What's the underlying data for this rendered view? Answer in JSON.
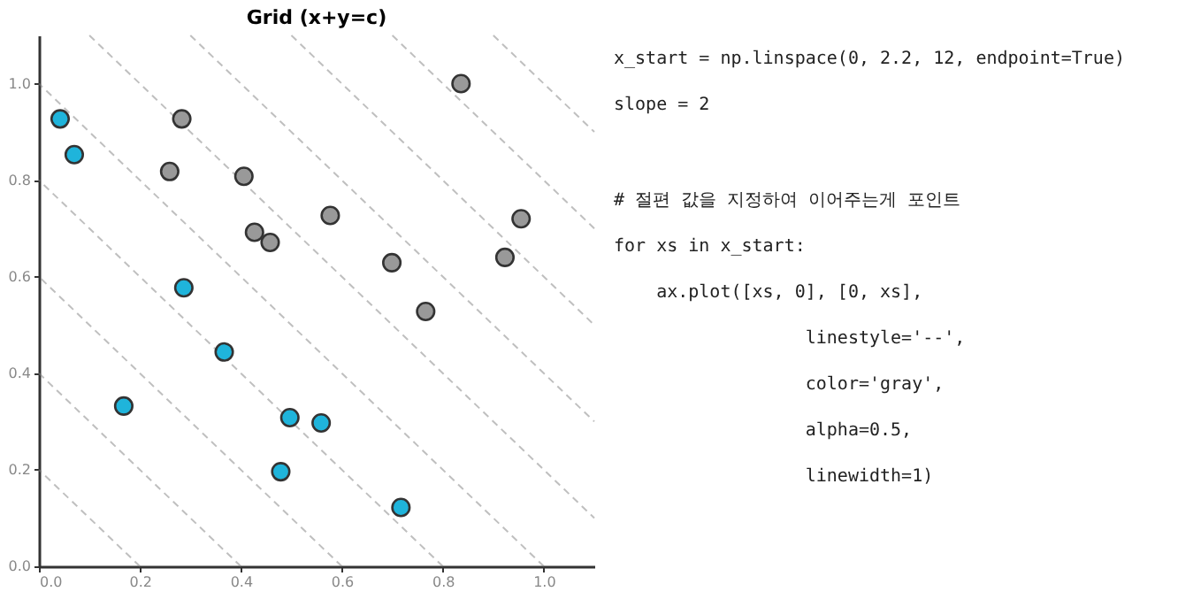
{
  "chart_data": {
    "type": "scatter",
    "title": "Grid (x+y=c)",
    "xlim": [
      0,
      1.1
    ],
    "ylim": [
      0,
      1.1
    ],
    "xticks": [
      {
        "value": 0,
        "label": "0.0"
      },
      0.2,
      0.4,
      0.6,
      0.8,
      {
        "value": 1,
        "label": "1.0"
      }
    ],
    "yticks": [
      {
        "value": 0,
        "label": "0.0"
      },
      0.2,
      0.4,
      0.6,
      0.8,
      {
        "value": 1,
        "label": "1.0"
      }
    ],
    "grid": false,
    "series": [
      {
        "type": "line",
        "color": "#808080",
        "line_style": "dashed",
        "marker": "none",
        "x": [
          0.2,
          0
        ],
        "values": [
          0,
          0.2
        ]
      },
      {
        "type": "line",
        "color": "#808080",
        "line_style": "dashed",
        "marker": "none",
        "x": [
          0.4,
          0
        ],
        "values": [
          0,
          0.4
        ]
      },
      {
        "type": "line",
        "color": "#808080",
        "line_style": "dashed",
        "marker": "none",
        "x": [
          0.6,
          0
        ],
        "values": [
          0,
          0.6
        ]
      },
      {
        "type": "line",
        "color": "#808080",
        "line_style": "dashed",
        "marker": "none",
        "x": [
          0.8,
          0
        ],
        "values": [
          0,
          0.8
        ]
      },
      {
        "type": "line",
        "color": "#808080",
        "line_style": "dashed",
        "marker": "none",
        "x": [
          1.0,
          0
        ],
        "values": [
          0,
          1.0
        ]
      },
      {
        "type": "line",
        "color": "#808080",
        "line_style": "dashed",
        "marker": "none",
        "x": [
          0.1,
          1.1
        ],
        "values": [
          1.1,
          0.1
        ]
      },
      {
        "type": "line",
        "color": "#808080",
        "line_style": "dashed",
        "marker": "none",
        "x": [
          0.3,
          1.1
        ],
        "values": [
          1.1,
          0.3
        ]
      },
      {
        "type": "line",
        "color": "#808080",
        "line_style": "dashed",
        "marker": "none",
        "x": [
          0.5,
          1.1
        ],
        "values": [
          1.1,
          0.5
        ]
      },
      {
        "type": "line",
        "color": "#808080",
        "line_style": "dashed",
        "marker": "none",
        "x": [
          0.7,
          1.1
        ],
        "values": [
          1.1,
          0.7
        ]
      },
      {
        "type": "line",
        "color": "#808080",
        "line_style": "dashed",
        "marker": "none",
        "x": [
          0.9,
          1.1
        ],
        "values": [
          1.1,
          0.9
        ]
      },
      {
        "color": "#999999",
        "marker": "circle",
        "x": [
          0.283,
          0.259,
          0.406,
          0.427,
          0.458,
          0.577,
          0.699,
          0.766,
          0.836,
          0.923,
          0.955
        ],
        "values": [
          0.927,
          0.818,
          0.808,
          0.692,
          0.671,
          0.727,
          0.629,
          0.528,
          1.0,
          0.64,
          0.72
        ]
      },
      {
        "color": "#1fb4db",
        "marker": "circle",
        "x": [
          0.042,
          0.07,
          0.168,
          0.287,
          0.367,
          0.497,
          0.559,
          0.479,
          0.717
        ],
        "values": [
          0.927,
          0.853,
          0.332,
          0.577,
          0.444,
          0.308,
          0.297,
          0.196,
          0.122
        ]
      }
    ],
    "annotations": [
      "x_start = np.linspace(0, 2.2, 12, endpoint=True)",
      "slope = 2",
      "# 절편 값을 지정하여 이어주는게 포인트",
      "for xs in x_start:",
      "    ax.plot([xs, 0], [0, xs],",
      "                  linestyle='--',",
      "                  color='gray',",
      "                  alpha=0.5,",
      "                  linewidth=1)"
    ]
  }
}
